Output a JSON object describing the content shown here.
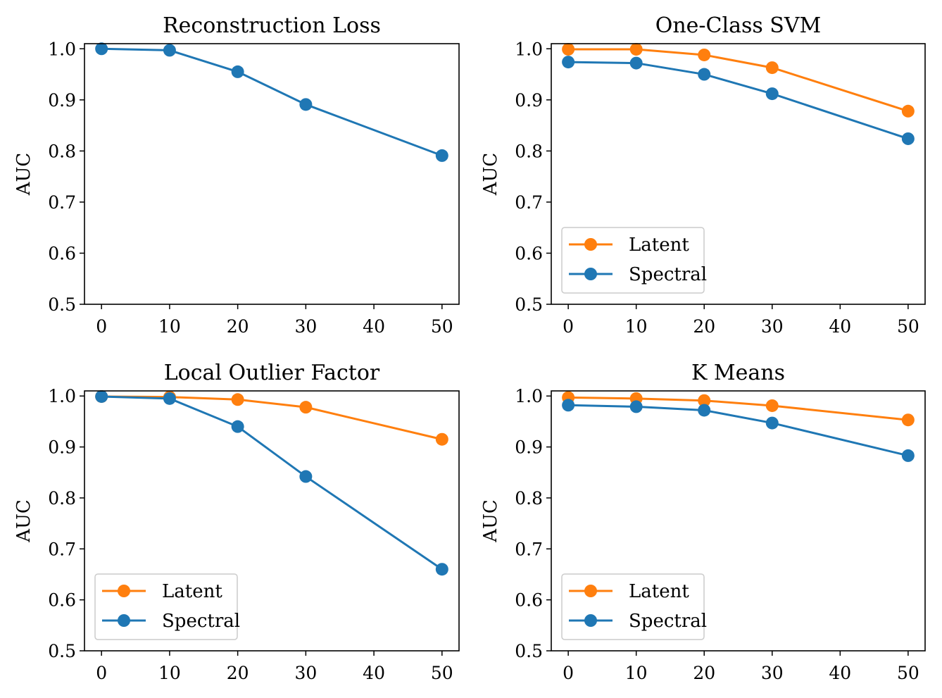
{
  "colors": {
    "latent": "#ff7f0e",
    "spectral": "#1f77b4",
    "axis": "#000000"
  },
  "chart_data": [
    {
      "type": "line",
      "title": "Reconstruction Loss",
      "xlabel": "",
      "ylabel": "AUC",
      "xlim": [
        -2.5,
        52.5
      ],
      "ylim": [
        0.5,
        1.01
      ],
      "xticks": [
        0,
        10,
        20,
        30,
        40,
        50
      ],
      "yticks": [
        0.5,
        0.6,
        0.7,
        0.8,
        0.9,
        1.0
      ],
      "xtick_labels": [
        "0",
        "10",
        "20",
        "30",
        "40",
        "50"
      ],
      "ytick_labels": [
        "0.5",
        "0.6",
        "0.7",
        "0.8",
        "0.9",
        "1.0"
      ],
      "grid": false,
      "legend": null,
      "x": [
        0,
        10,
        20,
        30,
        40,
        50
      ],
      "series": [
        {
          "key": "spectral",
          "x": [
            0,
            10,
            20,
            30,
            50
          ],
          "values": [
            1.0,
            0.997,
            0.955,
            0.891,
            0.791
          ]
        }
      ]
    },
    {
      "type": "line",
      "title": "One-Class SVM",
      "xlabel": "",
      "ylabel": "AUC",
      "xlim": [
        -2.5,
        52.5
      ],
      "ylim": [
        0.5,
        1.01
      ],
      "xticks": [
        0,
        10,
        20,
        30,
        40,
        50
      ],
      "yticks": [
        0.5,
        0.6,
        0.7,
        0.8,
        0.9,
        1.0
      ],
      "xtick_labels": [
        "0",
        "10",
        "20",
        "30",
        "40",
        "50"
      ],
      "ytick_labels": [
        "0.5",
        "0.6",
        "0.7",
        "0.8",
        "0.9",
        "1.0"
      ],
      "grid": false,
      "legend": "lower-left",
      "series": [
        {
          "key": "latent",
          "name": "Latent",
          "x": [
            0,
            10,
            20,
            30,
            50
          ],
          "values": [
            0.999,
            0.999,
            0.988,
            0.963,
            0.878
          ]
        },
        {
          "key": "spectral",
          "name": "Spectral",
          "x": [
            0,
            10,
            20,
            30,
            50
          ],
          "values": [
            0.974,
            0.972,
            0.95,
            0.912,
            0.824
          ]
        }
      ]
    },
    {
      "type": "line",
      "title": "Local Outlier Factor",
      "xlabel": "",
      "ylabel": "AUC",
      "xlim": [
        -2.5,
        52.5
      ],
      "ylim": [
        0.5,
        1.01
      ],
      "xticks": [
        0,
        10,
        20,
        30,
        40,
        50
      ],
      "yticks": [
        0.5,
        0.6,
        0.7,
        0.8,
        0.9,
        1.0
      ],
      "xtick_labels": [
        "0",
        "10",
        "20",
        "30",
        "40",
        "50"
      ],
      "ytick_labels": [
        "0.5",
        "0.6",
        "0.7",
        "0.8",
        "0.9",
        "1.0"
      ],
      "grid": false,
      "legend": "lower-left",
      "series": [
        {
          "key": "latent",
          "name": "Latent",
          "x": [
            0,
            10,
            20,
            30,
            50
          ],
          "values": [
            0.999,
            0.998,
            0.993,
            0.978,
            0.915
          ]
        },
        {
          "key": "spectral",
          "name": "Spectral",
          "x": [
            0,
            10,
            20,
            30,
            50
          ],
          "values": [
            0.999,
            0.995,
            0.94,
            0.842,
            0.66
          ]
        }
      ]
    },
    {
      "type": "line",
      "title": "K Means",
      "xlabel": "",
      "ylabel": "AUC",
      "xlim": [
        -2.5,
        52.5
      ],
      "ylim": [
        0.5,
        1.01
      ],
      "xticks": [
        0,
        10,
        20,
        30,
        40,
        50
      ],
      "yticks": [
        0.5,
        0.6,
        0.7,
        0.8,
        0.9,
        1.0
      ],
      "xtick_labels": [
        "0",
        "10",
        "20",
        "30",
        "40",
        "50"
      ],
      "ytick_labels": [
        "0.5",
        "0.6",
        "0.7",
        "0.8",
        "0.9",
        "1.0"
      ],
      "grid": false,
      "legend": "lower-left",
      "series": [
        {
          "key": "latent",
          "name": "Latent",
          "x": [
            0,
            10,
            20,
            30,
            50
          ],
          "values": [
            0.997,
            0.995,
            0.991,
            0.981,
            0.953
          ]
        },
        {
          "key": "spectral",
          "name": "Spectral",
          "x": [
            0,
            10,
            20,
            30,
            50
          ],
          "values": [
            0.982,
            0.979,
            0.972,
            0.947,
            0.883
          ]
        }
      ]
    }
  ]
}
